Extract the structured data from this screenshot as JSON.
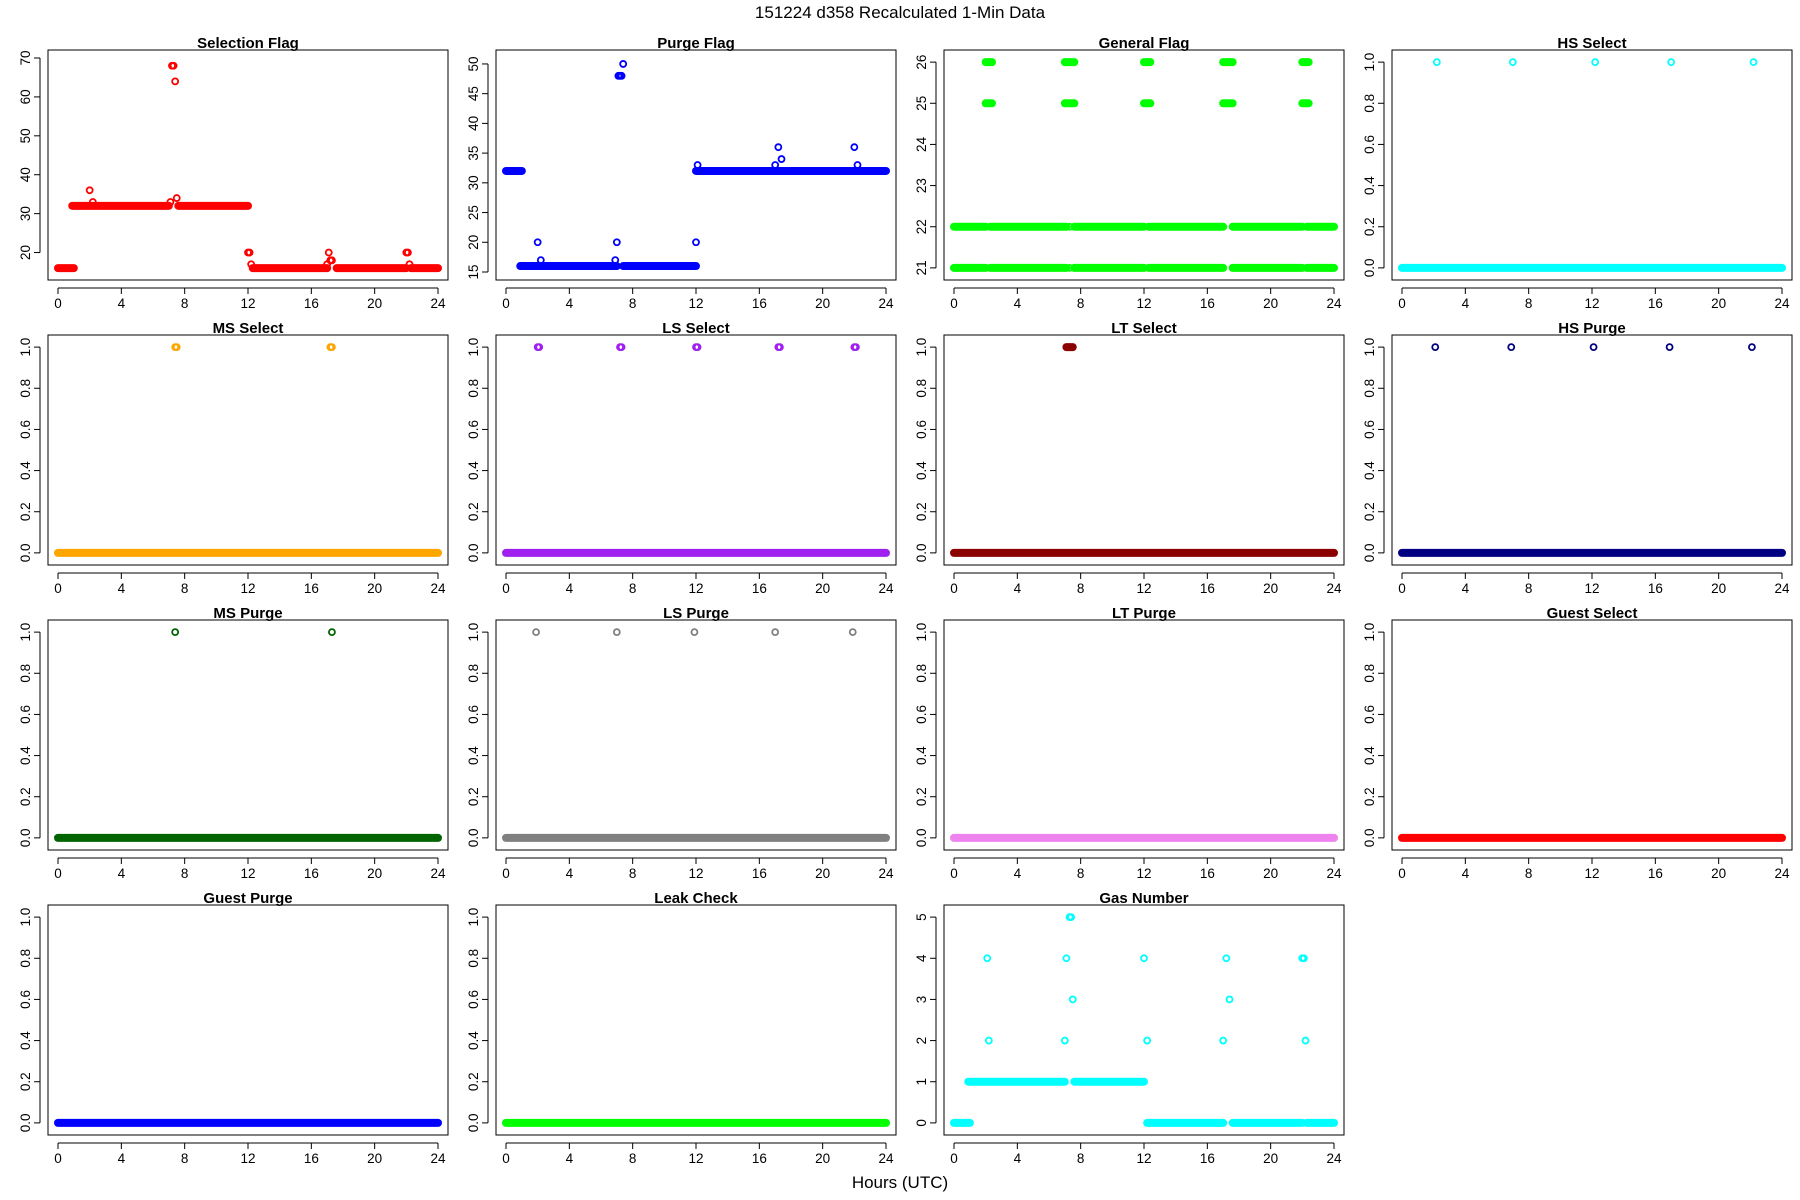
{
  "figure": {
    "title": "151224   d358   Recalculated 1-Min Data",
    "xlabel": "Hours (UTC)"
  },
  "chart_data": [
    {
      "type": "scatter",
      "title": "Selection Flag",
      "color": "#ff0000",
      "xlim": [
        0,
        24
      ],
      "ylim": [
        15,
        70
      ],
      "xticks": [
        0,
        4,
        8,
        12,
        16,
        20,
        24
      ],
      "yticks": [
        20,
        30,
        40,
        50,
        60,
        70
      ],
      "segments": [
        {
          "from": 0.0,
          "to": 1.0,
          "y": 16
        },
        {
          "from": 0.9,
          "to": 7.0,
          "y": 32
        },
        {
          "from": 7.6,
          "to": 12.0,
          "y": 32
        },
        {
          "from": 12.3,
          "to": 17.0,
          "y": 16
        },
        {
          "from": 17.6,
          "to": 22.0,
          "y": 16
        },
        {
          "from": 22.3,
          "to": 24.0,
          "y": 16
        }
      ],
      "points": [
        [
          2.0,
          36
        ],
        [
          2.2,
          33
        ],
        [
          7.1,
          33
        ],
        [
          7.2,
          68
        ],
        [
          7.3,
          68
        ],
        [
          7.4,
          64
        ],
        [
          7.5,
          34
        ],
        [
          12.0,
          20
        ],
        [
          12.1,
          20
        ],
        [
          12.2,
          17
        ],
        [
          17.0,
          17
        ],
        [
          17.1,
          20
        ],
        [
          17.2,
          18
        ],
        [
          17.3,
          18
        ],
        [
          22.0,
          20
        ],
        [
          22.1,
          20
        ],
        [
          22.2,
          17
        ]
      ]
    },
    {
      "type": "scatter",
      "title": "Purge Flag",
      "color": "#0000ff",
      "xlim": [
        0,
        24
      ],
      "ylim": [
        15,
        51
      ],
      "xticks": [
        0,
        4,
        8,
        12,
        16,
        20,
        24
      ],
      "yticks": [
        15,
        20,
        25,
        30,
        35,
        40,
        45,
        50
      ],
      "segments": [
        {
          "from": 0.0,
          "to": 1.0,
          "y": 32
        },
        {
          "from": 0.9,
          "to": 7.0,
          "y": 16
        },
        {
          "from": 7.4,
          "to": 12.0,
          "y": 16
        },
        {
          "from": 12.0,
          "to": 24.0,
          "y": 32
        }
      ],
      "points": [
        [
          2.0,
          20
        ],
        [
          2.2,
          17
        ],
        [
          7.0,
          20
        ],
        [
          6.9,
          17
        ],
        [
          7.1,
          48
        ],
        [
          7.2,
          48
        ],
        [
          7.3,
          48
        ],
        [
          7.4,
          50
        ],
        [
          12.0,
          20
        ],
        [
          12.1,
          33
        ],
        [
          17.0,
          33
        ],
        [
          17.2,
          36
        ],
        [
          17.4,
          34
        ],
        [
          22.0,
          36
        ],
        [
          22.2,
          33
        ]
      ]
    },
    {
      "type": "scatter",
      "title": "General Flag",
      "color": "#00ff00",
      "xlim": [
        0,
        24
      ],
      "ylim": [
        20.9,
        26.1
      ],
      "xticks": [
        0,
        4,
        8,
        12,
        16,
        20,
        24
      ],
      "yticks": [
        21,
        22,
        23,
        24,
        25,
        26
      ],
      "segments": [
        {
          "from": 0.0,
          "to": 2.0,
          "y": 21
        },
        {
          "from": 0.0,
          "to": 2.0,
          "y": 22
        },
        {
          "from": 2.3,
          "to": 7.1,
          "y": 21
        },
        {
          "from": 2.3,
          "to": 7.1,
          "y": 22
        },
        {
          "from": 7.6,
          "to": 12.0,
          "y": 21
        },
        {
          "from": 7.6,
          "to": 12.0,
          "y": 22
        },
        {
          "from": 12.3,
          "to": 17.0,
          "y": 21
        },
        {
          "from": 12.3,
          "to": 17.0,
          "y": 22
        },
        {
          "from": 17.6,
          "to": 22.0,
          "y": 21
        },
        {
          "from": 17.6,
          "to": 22.0,
          "y": 22
        },
        {
          "from": 22.3,
          "to": 24.0,
          "y": 21
        },
        {
          "from": 22.3,
          "to": 24.0,
          "y": 22
        },
        {
          "from": 2.0,
          "to": 2.4,
          "y": 25
        },
        {
          "from": 2.0,
          "to": 2.4,
          "y": 26
        },
        {
          "from": 7.0,
          "to": 7.6,
          "y": 25
        },
        {
          "from": 7.0,
          "to": 7.6,
          "y": 26
        },
        {
          "from": 12.0,
          "to": 12.4,
          "y": 25
        },
        {
          "from": 12.0,
          "to": 12.4,
          "y": 26
        },
        {
          "from": 17.0,
          "to": 17.6,
          "y": 25
        },
        {
          "from": 17.0,
          "to": 17.6,
          "y": 26
        },
        {
          "from": 22.0,
          "to": 22.4,
          "y": 25
        },
        {
          "from": 22.0,
          "to": 22.4,
          "y": 26
        }
      ],
      "points": [
        [
          7.3,
          22
        ],
        [
          7.3,
          21
        ]
      ]
    },
    {
      "type": "scatter",
      "title": "HS Select",
      "color": "#00ffff",
      "xlim": [
        0,
        24
      ],
      "ylim": [
        -0.02,
        1.02
      ],
      "xticks": [
        0,
        4,
        8,
        12,
        16,
        20,
        24
      ],
      "yticks": [
        0.0,
        0.2,
        0.4,
        0.6,
        0.8,
        1.0
      ],
      "segments": [
        {
          "from": 0.0,
          "to": 24.0,
          "y": 0
        }
      ],
      "points": [
        [
          2.2,
          1
        ],
        [
          7.0,
          1
        ],
        [
          12.2,
          1
        ],
        [
          17.0,
          1
        ],
        [
          22.2,
          1
        ]
      ]
    },
    {
      "type": "scatter",
      "title": "MS Select",
      "color": "#ffa500",
      "xlim": [
        0,
        24
      ],
      "ylim": [
        -0.02,
        1.02
      ],
      "xticks": [
        0,
        4,
        8,
        12,
        16,
        20,
        24
      ],
      "yticks": [
        0.0,
        0.2,
        0.4,
        0.6,
        0.8,
        1.0
      ],
      "segments": [
        {
          "from": 0.0,
          "to": 24.0,
          "y": 0
        }
      ],
      "points": [
        [
          7.4,
          1
        ],
        [
          7.5,
          1
        ],
        [
          17.2,
          1
        ],
        [
          17.3,
          1
        ]
      ]
    },
    {
      "type": "scatter",
      "title": "LS Select",
      "color": "#a020f0",
      "xlim": [
        0,
        24
      ],
      "ylim": [
        -0.02,
        1.02
      ],
      "xticks": [
        0,
        4,
        8,
        12,
        16,
        20,
        24
      ],
      "yticks": [
        0.0,
        0.2,
        0.4,
        0.6,
        0.8,
        1.0
      ],
      "segments": [
        {
          "from": 0.0,
          "to": 24.0,
          "y": 0
        }
      ],
      "points": [
        [
          2.0,
          1
        ],
        [
          2.1,
          1
        ],
        [
          7.2,
          1
        ],
        [
          7.3,
          1
        ],
        [
          12.0,
          1
        ],
        [
          12.1,
          1
        ],
        [
          17.2,
          1
        ],
        [
          17.3,
          1
        ],
        [
          22.0,
          1
        ],
        [
          22.1,
          1
        ]
      ]
    },
    {
      "type": "scatter",
      "title": "LT Select",
      "color": "#8b0000",
      "xlim": [
        0,
        24
      ],
      "ylim": [
        -0.02,
        1.02
      ],
      "xticks": [
        0,
        4,
        8,
        12,
        16,
        20,
        24
      ],
      "yticks": [
        0.0,
        0.2,
        0.4,
        0.6,
        0.8,
        1.0
      ],
      "segments": [
        {
          "from": 0.0,
          "to": 24.0,
          "y": 0
        },
        {
          "from": 7.1,
          "to": 7.5,
          "y": 1
        }
      ],
      "points": []
    },
    {
      "type": "scatter",
      "title": "HS Purge",
      "color": "#000080",
      "xlim": [
        0,
        24
      ],
      "ylim": [
        -0.02,
        1.02
      ],
      "xticks": [
        0,
        4,
        8,
        12,
        16,
        20,
        24
      ],
      "yticks": [
        0.0,
        0.2,
        0.4,
        0.6,
        0.8,
        1.0
      ],
      "segments": [
        {
          "from": 0.0,
          "to": 24.0,
          "y": 0
        }
      ],
      "points": [
        [
          2.1,
          1
        ],
        [
          6.9,
          1
        ],
        [
          12.1,
          1
        ],
        [
          16.9,
          1
        ],
        [
          22.1,
          1
        ]
      ]
    },
    {
      "type": "scatter",
      "title": "MS Purge",
      "color": "#006400",
      "xlim": [
        0,
        24
      ],
      "ylim": [
        -0.02,
        1.02
      ],
      "xticks": [
        0,
        4,
        8,
        12,
        16,
        20,
        24
      ],
      "yticks": [
        0.0,
        0.2,
        0.4,
        0.6,
        0.8,
        1.0
      ],
      "segments": [
        {
          "from": 0.0,
          "to": 24.0,
          "y": 0
        }
      ],
      "points": [
        [
          7.4,
          1
        ],
        [
          17.3,
          1
        ]
      ]
    },
    {
      "type": "scatter",
      "title": "LS Purge",
      "color": "#808080",
      "xlim": [
        0,
        24
      ],
      "ylim": [
        -0.02,
        1.02
      ],
      "xticks": [
        0,
        4,
        8,
        12,
        16,
        20,
        24
      ],
      "yticks": [
        0.0,
        0.2,
        0.4,
        0.6,
        0.8,
        1.0
      ],
      "segments": [
        {
          "from": 0.0,
          "to": 24.0,
          "y": 0
        }
      ],
      "points": [
        [
          1.9,
          1
        ],
        [
          7.0,
          1
        ],
        [
          11.9,
          1
        ],
        [
          17.0,
          1
        ],
        [
          21.9,
          1
        ]
      ]
    },
    {
      "type": "scatter",
      "title": "LT Purge",
      "color": "#ee82ee",
      "xlim": [
        0,
        24
      ],
      "ylim": [
        -0.02,
        1.02
      ],
      "xticks": [
        0,
        4,
        8,
        12,
        16,
        20,
        24
      ],
      "yticks": [
        0.0,
        0.2,
        0.4,
        0.6,
        0.8,
        1.0
      ],
      "segments": [
        {
          "from": 0.0,
          "to": 24.0,
          "y": 0
        }
      ],
      "points": []
    },
    {
      "type": "scatter",
      "title": "Guest Select",
      "color": "#ff0000",
      "xlim": [
        0,
        24
      ],
      "ylim": [
        -0.02,
        1.02
      ],
      "xticks": [
        0,
        4,
        8,
        12,
        16,
        20,
        24
      ],
      "yticks": [
        0.0,
        0.2,
        0.4,
        0.6,
        0.8,
        1.0
      ],
      "segments": [
        {
          "from": 0.0,
          "to": 24.0,
          "y": 0
        }
      ],
      "points": []
    },
    {
      "type": "scatter",
      "title": "Guest Purge",
      "color": "#0000ff",
      "xlim": [
        0,
        24
      ],
      "ylim": [
        -0.02,
        1.02
      ],
      "xticks": [
        0,
        4,
        8,
        12,
        16,
        20,
        24
      ],
      "yticks": [
        0.0,
        0.2,
        0.4,
        0.6,
        0.8,
        1.0
      ],
      "segments": [
        {
          "from": 0.0,
          "to": 24.0,
          "y": 0
        }
      ],
      "points": []
    },
    {
      "type": "scatter",
      "title": "Leak Check",
      "color": "#00ff00",
      "xlim": [
        0,
        24
      ],
      "ylim": [
        -0.02,
        1.02
      ],
      "xticks": [
        0,
        4,
        8,
        12,
        16,
        20,
        24
      ],
      "yticks": [
        0.0,
        0.2,
        0.4,
        0.6,
        0.8,
        1.0
      ],
      "segments": [
        {
          "from": 0.0,
          "to": 24.0,
          "y": 0
        }
      ],
      "points": []
    },
    {
      "type": "scatter",
      "title": "Gas Number",
      "color": "#00ffff",
      "xlim": [
        0,
        24
      ],
      "ylim": [
        -0.1,
        5.1
      ],
      "xticks": [
        0,
        4,
        8,
        12,
        16,
        20,
        24
      ],
      "yticks": [
        0,
        1,
        2,
        3,
        4,
        5
      ],
      "segments": [
        {
          "from": 0.0,
          "to": 1.0,
          "y": 0
        },
        {
          "from": 0.9,
          "to": 7.0,
          "y": 1
        },
        {
          "from": 7.6,
          "to": 12.0,
          "y": 1
        },
        {
          "from": 12.2,
          "to": 17.0,
          "y": 0
        },
        {
          "from": 17.6,
          "to": 22.0,
          "y": 0
        },
        {
          "from": 22.3,
          "to": 24.0,
          "y": 0
        }
      ],
      "points": [
        [
          2.1,
          4
        ],
        [
          2.2,
          2
        ],
        [
          7.0,
          2
        ],
        [
          7.1,
          4
        ],
        [
          7.3,
          5
        ],
        [
          7.4,
          5
        ],
        [
          7.5,
          3
        ],
        [
          12.0,
          4
        ],
        [
          12.2,
          2
        ],
        [
          17.0,
          2
        ],
        [
          17.2,
          4
        ],
        [
          17.4,
          3
        ],
        [
          22.0,
          4
        ],
        [
          22.1,
          4
        ],
        [
          22.2,
          2
        ]
      ]
    }
  ]
}
